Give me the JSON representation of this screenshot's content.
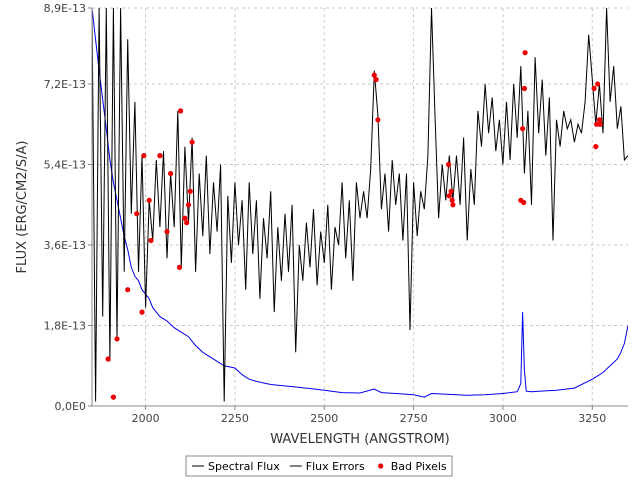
{
  "chart_data": {
    "type": "line",
    "xlabel": "WAVELENGTH (ANGSTROM)",
    "ylabel": "FLUX (ERG/CM2/S/A)",
    "xlim": [
      1850,
      3350
    ],
    "ylim": [
      0,
      8.9e-13
    ],
    "grid": true,
    "legend_position": "bottom",
    "x_ticks": [
      {
        "value": 2000,
        "label": "2000"
      },
      {
        "value": 2250,
        "label": "2250"
      },
      {
        "value": 2500,
        "label": "2500"
      },
      {
        "value": 2750,
        "label": "2750"
      },
      {
        "value": 3000,
        "label": "3000"
      },
      {
        "value": 3250,
        "label": "3250"
      }
    ],
    "y_ticks": [
      {
        "value": 0,
        "label": "0,0E0"
      },
      {
        "value": 1.8e-13,
        "label": "1,8E-13"
      },
      {
        "value": 3.6e-13,
        "label": "3,6E-13"
      },
      {
        "value": 5.4e-13,
        "label": "5,4E-13"
      },
      {
        "value": 7.2e-13,
        "label": "7,2E-13"
      },
      {
        "value": 8.9e-13,
        "label": "8,9E-13"
      }
    ],
    "series": [
      {
        "name": "Spectral Flux",
        "color": "#000000",
        "x": [
          1850,
          1860,
          1870,
          1880,
          1890,
          1900,
          1910,
          1920,
          1930,
          1940,
          1950,
          1960,
          1970,
          1980,
          1990,
          2000,
          2010,
          2020,
          2030,
          2040,
          2050,
          2060,
          2070,
          2080,
          2090,
          2100,
          2110,
          2120,
          2130,
          2140,
          2150,
          2160,
          2170,
          2180,
          2190,
          2200,
          2210,
          2220,
          2230,
          2240,
          2250,
          2260,
          2270,
          2280,
          2290,
          2300,
          2310,
          2320,
          2330,
          2340,
          2350,
          2360,
          2370,
          2380,
          2390,
          2400,
          2410,
          2420,
          2430,
          2440,
          2450,
          2460,
          2470,
          2480,
          2490,
          2500,
          2510,
          2520,
          2530,
          2540,
          2550,
          2560,
          2570,
          2580,
          2590,
          2600,
          2610,
          2620,
          2630,
          2640,
          2650,
          2660,
          2670,
          2680,
          2690,
          2700,
          2710,
          2720,
          2730,
          2740,
          2750,
          2760,
          2770,
          2780,
          2790,
          2800,
          2810,
          2820,
          2830,
          2840,
          2850,
          2860,
          2870,
          2880,
          2890,
          2900,
          2910,
          2920,
          2930,
          2940,
          2950,
          2960,
          2970,
          2980,
          2990,
          3000,
          3010,
          3020,
          3030,
          3040,
          3050,
          3060,
          3070,
          3080,
          3090,
          3100,
          3110,
          3120,
          3130,
          3140,
          3150,
          3160,
          3170,
          3180,
          3190,
          3200,
          3210,
          3220,
          3230,
          3240,
          3250,
          3260,
          3270,
          3280,
          3290,
          3300,
          3310,
          3320,
          3330,
          3340,
          3350
        ],
        "values": [
          8.9e-13,
          1e-14,
          8.9e-13,
          2e-13,
          8.9e-13,
          1e-13,
          8.9e-13,
          1.5e-13,
          8.9e-13,
          3e-13,
          8.2e-13,
          4.3e-13,
          6.8e-13,
          3e-13,
          5.6e-13,
          2.2e-13,
          4.6e-13,
          3.7e-13,
          5.5e-13,
          4e-13,
          5.7e-13,
          3.3e-13,
          5.2e-13,
          4e-13,
          6.6e-13,
          3.1e-13,
          5.8e-13,
          4.1e-13,
          6e-13,
          3e-13,
          5.2e-13,
          3.8e-13,
          5.6e-13,
          3.4e-13,
          5e-13,
          3.9e-13,
          5.4e-13,
          1e-14,
          4.7e-13,
          3.2e-13,
          5e-13,
          3.6e-13,
          4.6e-13,
          2.6e-13,
          5e-13,
          3.4e-13,
          4.6e-13,
          2.4e-13,
          4.2e-13,
          3.3e-13,
          4.8e-13,
          2.1e-13,
          4e-13,
          2.8e-13,
          4.3e-13,
          3e-13,
          4.5e-13,
          1.2e-13,
          3.6e-13,
          2.8e-13,
          4.1e-13,
          3.1e-13,
          4.4e-13,
          2.7e-13,
          3.9e-13,
          3.2e-13,
          4.5e-13,
          2.6e-13,
          4e-13,
          3.6e-13,
          5e-13,
          3.3e-13,
          4.6e-13,
          2.8e-13,
          5e-13,
          4.2e-13,
          4.8e-13,
          4.2e-13,
          5.3e-13,
          7.5e-13,
          6.5e-13,
          4.4e-13,
          5.2e-13,
          3.9e-13,
          5.5e-13,
          4.5e-13,
          5.2e-13,
          3.7e-13,
          5.2e-13,
          1.7e-13,
          5e-13,
          3.8e-13,
          4.8e-13,
          4.4e-13,
          5.6e-13,
          8.9e-13,
          6.5e-13,
          4.2e-13,
          5.4e-13,
          4.6e-13,
          5.6e-13,
          4.6e-13,
          5.6e-13,
          4.5e-13,
          6e-13,
          3.7e-13,
          5.3e-13,
          4.5e-13,
          6.6e-13,
          5.8e-13,
          7.2e-13,
          6.1e-13,
          6.9e-13,
          5.7e-13,
          6.4e-13,
          5.4e-13,
          6.8e-13,
          5.5e-13,
          7.2e-13,
          6e-13,
          7.6e-13,
          5.2e-13,
          6.6e-13,
          4.5e-13,
          7.8e-13,
          6.1e-13,
          7.3e-13,
          5.6e-13,
          6.9e-13,
          3.7e-13,
          6.4e-13,
          5.8e-13,
          6.6e-13,
          6.2e-13,
          6.4e-13,
          5.9e-13,
          6.3e-13,
          6.1e-13,
          6.8e-13,
          8.3e-13,
          7.3e-13,
          6.3e-13,
          7.2e-13,
          6.1e-13,
          8.9e-13,
          6.8e-13,
          7.6e-13,
          6.2e-13,
          6.7e-13,
          5.5e-13,
          5.6e-13
        ]
      },
      {
        "name": "Flux Errors",
        "color": "#0000ee",
        "x": [
          1850,
          1870,
          1890,
          1900,
          1910,
          1920,
          1930,
          1940,
          1950,
          1960,
          1970,
          1980,
          1990,
          2000,
          2010,
          2020,
          2030,
          2040,
          2050,
          2060,
          2080,
          2100,
          2120,
          2140,
          2160,
          2180,
          2200,
          2220,
          2250,
          2270,
          2290,
          2310,
          2350,
          2400,
          2450,
          2500,
          2550,
          2600,
          2640,
          2660,
          2700,
          2750,
          2780,
          2800,
          2850,
          2900,
          2950,
          3000,
          3040,
          3050,
          3055,
          3060,
          3065,
          3080,
          3100,
          3150,
          3200,
          3250,
          3280,
          3300,
          3320,
          3330,
          3340,
          3350
        ],
        "values": [
          8.9e-13,
          7.5e-13,
          6.2e-13,
          5.5e-13,
          5e-13,
          4.6e-13,
          4.2e-13,
          3.8e-13,
          3.5e-13,
          3.1e-13,
          2.9e-13,
          2.8e-13,
          2.6e-13,
          2.5e-13,
          2.4e-13,
          2.2e-13,
          2.1e-13,
          2e-13,
          1.95e-13,
          1.9e-13,
          1.75e-13,
          1.65e-13,
          1.55e-13,
          1.35e-13,
          1.2e-13,
          1.1e-13,
          1e-13,
          9e-14,
          8.5e-14,
          7e-14,
          6e-14,
          5.5e-14,
          4.8e-14,
          4.4e-14,
          4e-14,
          3.5e-14,
          3e-14,
          2.9e-14,
          3.8e-14,
          3e-14,
          2.8e-14,
          2.5e-14,
          2e-14,
          2.8e-14,
          2.6e-14,
          2.4e-14,
          2.5e-14,
          2.8e-14,
          3.2e-14,
          5e-14,
          2.1e-13,
          8e-14,
          3.3e-14,
          3.2e-14,
          3.3e-14,
          3.5e-14,
          4e-14,
          6e-14,
          7.5e-14,
          9e-14,
          1.05e-13,
          1.2e-13,
          1.4e-13,
          1.8e-13
        ]
      }
    ],
    "bad_pixels": {
      "name": "Bad Pixels",
      "color": "#ee0000",
      "x": [
        1895,
        1910,
        1920,
        1950,
        1975,
        1990,
        1995,
        2010,
        2015,
        2040,
        2060,
        2070,
        2095,
        2098,
        2110,
        2115,
        2120,
        2125,
        2130,
        2640,
        2645,
        2650,
        2848,
        2850,
        2855,
        2858,
        2860,
        3050,
        3055,
        3058,
        3060,
        3062,
        3255,
        3260,
        3262,
        3265,
        3270,
        3272
      ],
      "values": [
        1.05e-13,
        2e-14,
        1.5e-13,
        2.6e-13,
        4.3e-13,
        2.1e-13,
        5.6e-13,
        4.6e-13,
        3.7e-13,
        5.6e-13,
        3.9e-13,
        5.2e-13,
        3.1e-13,
        6.6e-13,
        4.2e-13,
        4.1e-13,
        4.5e-13,
        4.8e-13,
        5.9e-13,
        7.4e-13,
        7.3e-13,
        6.4e-13,
        5.4e-13,
        4.7e-13,
        4.8e-13,
        4.6e-13,
        4.5e-13,
        4.6e-13,
        6.2e-13,
        4.55e-13,
        7.1e-13,
        7.9e-13,
        7.1e-13,
        5.8e-13,
        6.3e-13,
        7.2e-13,
        6.4e-13,
        6.3e-13
      ]
    },
    "legend": [
      {
        "label": "Spectral Flux",
        "kind": "line",
        "color": "#000000"
      },
      {
        "label": "Flux Errors",
        "kind": "line",
        "color": "#000000"
      },
      {
        "label": "Bad Pixels",
        "kind": "dot",
        "color": "#ee0000"
      }
    ]
  }
}
